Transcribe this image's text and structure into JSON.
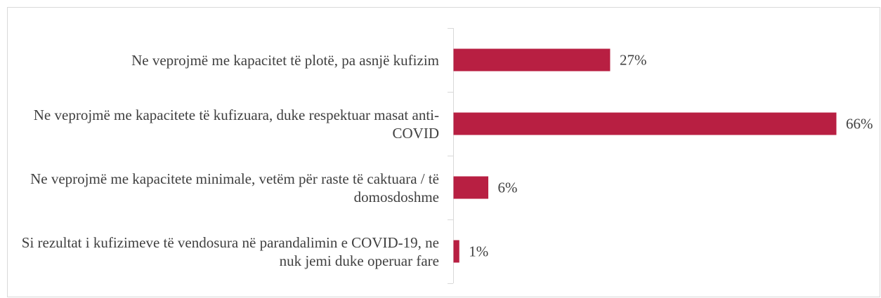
{
  "chart_data": {
    "type": "hbar",
    "categories": [
      "Ne veprojmë me kapacitet të plotë, pa asnjë kufizim",
      "Ne veprojmë me kapacitete të kufizuara, duke respektuar masat anti-COVID",
      "Ne veprojmë me kapacitete minimale, vetëm për raste të caktuara / të domosdoshme",
      "Si rezultat i kufizimeve të vendosura në parandalimin e COVID-19, ne nuk jemi duke operuar fare"
    ],
    "values": [
      27,
      66,
      6,
      1
    ],
    "value_labels": [
      "27%",
      "66%",
      "6%",
      "1%"
    ],
    "color": "#b81f42"
  }
}
